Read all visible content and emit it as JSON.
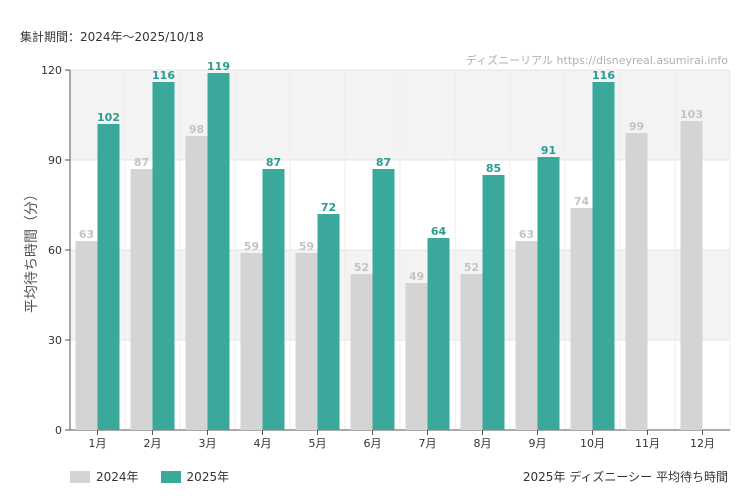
{
  "period_label": "集計期間：2024年～2025/10/18",
  "watermark": "ディズニーリアル https://disneyreal.asumirai.info",
  "footer_title": "2025年 ディズニーシー 平均待ち時間",
  "colors": {
    "s2024": "#d4d4d4",
    "s2025": "#3aa99c",
    "label2025": "#2a9d8f",
    "label2024": "#c4c4c4",
    "band": "#f3f3f3"
  },
  "chart_data": {
    "type": "bar",
    "ylabel": "平均待ち時間（分）",
    "ylim": [
      0,
      120
    ],
    "yticks": [
      0,
      30,
      60,
      90,
      120
    ],
    "categories": [
      "1月",
      "2月",
      "3月",
      "4月",
      "5月",
      "6月",
      "7月",
      "8月",
      "9月",
      "10月",
      "11月",
      "12月"
    ],
    "series": [
      {
        "name": "2024年",
        "values": [
          63,
          87,
          98,
          59,
          59,
          52,
          49,
          52,
          63,
          74,
          99,
          103
        ]
      },
      {
        "name": "2025年",
        "values": [
          102,
          116,
          119,
          87,
          72,
          87,
          64,
          85,
          91,
          116,
          null,
          null
        ]
      }
    ],
    "legend": "bottom-left",
    "grid": true
  }
}
